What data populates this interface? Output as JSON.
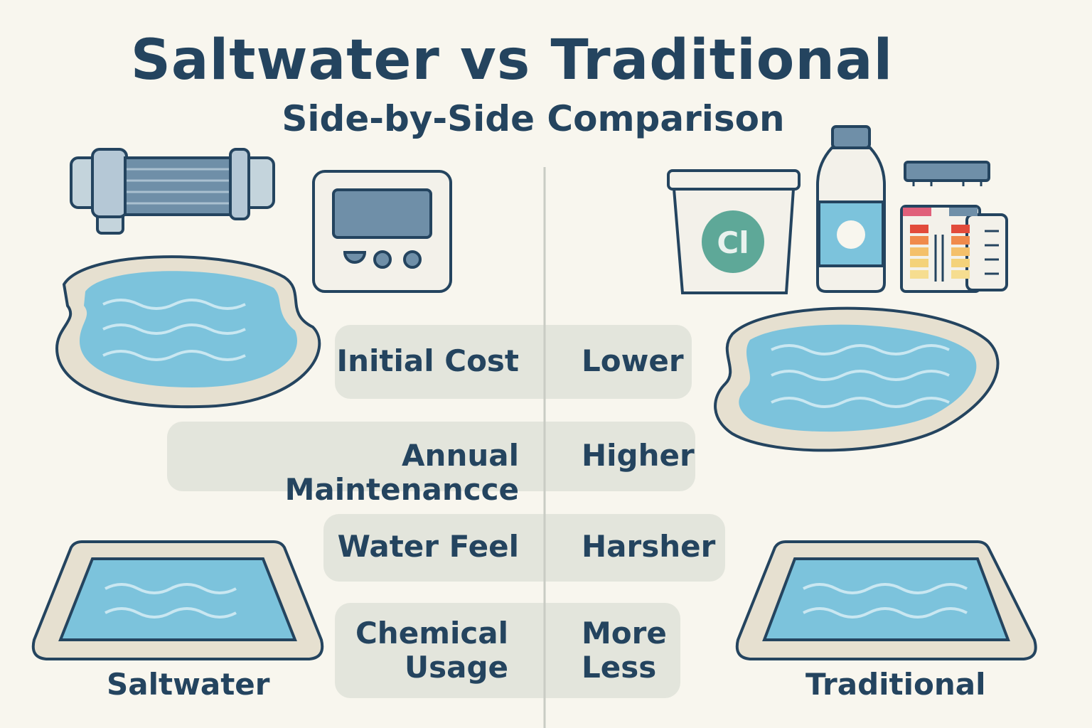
{
  "title": "Saltwater vs Traditional",
  "subtitle": "Side-by-Side Comparison",
  "colors": {
    "background": "#f8f6ee",
    "text": "#24445f",
    "row": "#e3e5dc",
    "water": "#7cc3dc",
    "deck": "#e6e0d0"
  },
  "icons": {
    "saltwater": [
      "salt-cell-icon",
      "control-panel-icon",
      "kidney-pool-icon",
      "rectangular-pool-icon"
    ],
    "traditional": [
      "chlorine-bucket-icon",
      "chemical-bottle-icon",
      "test-strip-kit-icon",
      "kidney-pool-icon",
      "rectangular-pool-icon"
    ]
  },
  "bucket_label": "Cl",
  "rows": [
    {
      "attribute": "Initial Cost",
      "value": "Lower"
    },
    {
      "attribute": "Annual Maintenancce",
      "value": "Higher"
    },
    {
      "attribute": "Water Feel",
      "value": "Harsher"
    },
    {
      "attribute": "Chemical Usage",
      "value": "More Less"
    }
  ],
  "labels": {
    "left": "Saltwater",
    "right": "Traditional"
  }
}
